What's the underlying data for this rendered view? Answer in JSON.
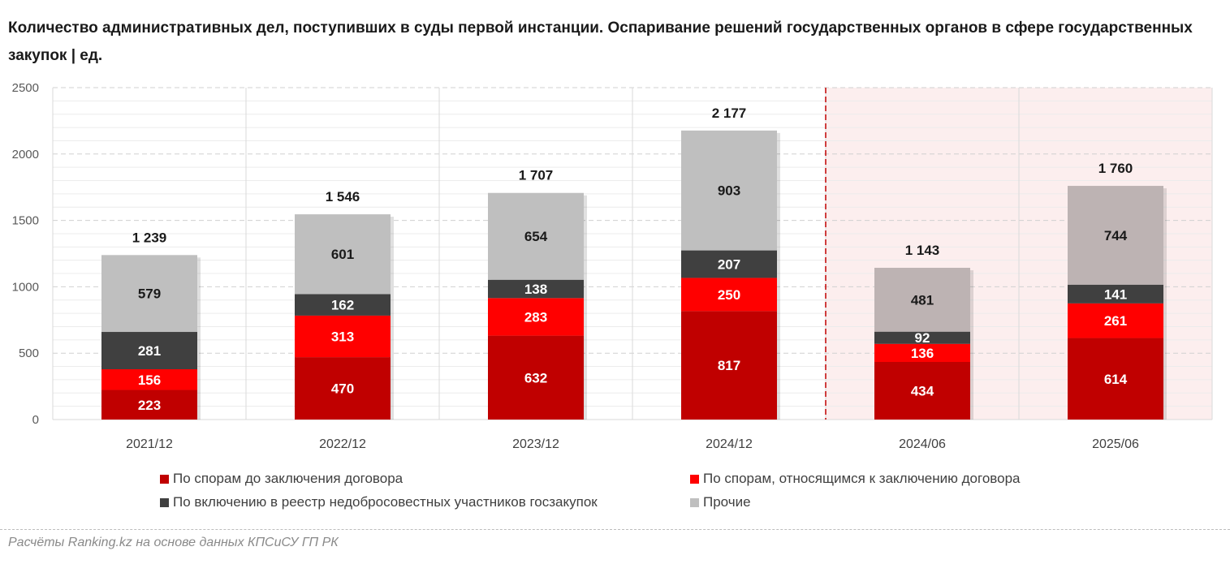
{
  "chart_data": {
    "type": "bar",
    "stacked": true,
    "title": "Количество административных дел, поступивших в суды первой инстанции. Оспаривание решений государственных органов в сфере государственных закупок | ед.",
    "categories": [
      "2021/12",
      "2022/12",
      "2023/12",
      "2024/12",
      "2024/06",
      "2025/06"
    ],
    "series": [
      {
        "name": "По спорам до заключения договора",
        "color": "#C00000",
        "values": [
          223,
          470,
          632,
          817,
          434,
          614
        ]
      },
      {
        "name": "По спорам, относящимся к заключению договора",
        "color": "#FF0000",
        "values": [
          156,
          313,
          283,
          250,
          136,
          261
        ]
      },
      {
        "name": "По включению в реестр недобросовестных участников госзакупок",
        "color": "#404040",
        "values": [
          281,
          162,
          138,
          207,
          92,
          141
        ]
      },
      {
        "name": "Прочие",
        "color": "#BFBFBF",
        "values": [
          579,
          601,
          654,
          903,
          481,
          744
        ]
      }
    ],
    "totals": [
      "1 239",
      "1 546",
      "1 707",
      "2 177",
      "1 143",
      "1 760"
    ],
    "ylim": [
      0,
      2500
    ],
    "yticks": [
      0,
      500,
      1000,
      1500,
      2000,
      2500
    ],
    "highlighted_categories": [
      "2024/06",
      "2025/06"
    ],
    "highlight_color": "#FCEEEE",
    "grid": true,
    "legend_position": "bottom",
    "xlabel": "",
    "ylabel": ""
  },
  "source": "Расчёты Ranking.kz на основе данных КПСиСУ ГП РК"
}
